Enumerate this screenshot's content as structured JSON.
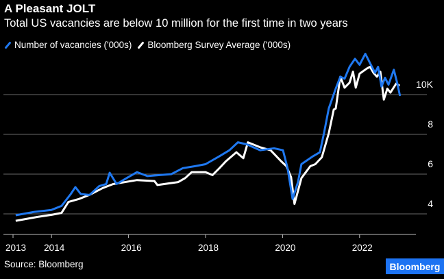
{
  "chart_data": {
    "type": "line",
    "title": "A Pleasant JOLT",
    "subtitle": "Total US vacancies are below 10 million for the first time in two years",
    "xlabel": "",
    "ylabel": "",
    "xlim": [
      2012.75,
      2023.5
    ],
    "ylim": [
      3.5,
      12.5
    ],
    "x_ticks": [
      2013,
      2014,
      2016,
      2018,
      2020,
      2022
    ],
    "x_tick_labels": [
      "2013",
      "2014",
      "2016",
      "2018",
      "2020",
      "2022"
    ],
    "y_ticks": [
      4,
      6,
      8,
      10
    ],
    "y_tick_labels": [
      "4",
      "6",
      "8",
      "10K"
    ],
    "grid": true,
    "legend_position": "top-left",
    "series": [
      {
        "name": "Number of vacancies ('000s)",
        "color": "#1f78f0",
        "points": [
          [
            2013.07,
            3.93
          ],
          [
            2013.55,
            4.1
          ],
          [
            2014.0,
            4.2
          ],
          [
            2014.26,
            4.4
          ],
          [
            2014.5,
            5.0
          ],
          [
            2014.62,
            5.35
          ],
          [
            2014.76,
            5.0
          ],
          [
            2014.99,
            4.95
          ],
          [
            2015.24,
            5.4
          ],
          [
            2015.42,
            5.5
          ],
          [
            2015.51,
            6.07
          ],
          [
            2015.69,
            5.5
          ],
          [
            2015.95,
            5.8
          ],
          [
            2016.22,
            6.1
          ],
          [
            2016.49,
            5.9
          ],
          [
            2016.81,
            5.95
          ],
          [
            2017.11,
            6.0
          ],
          [
            2017.41,
            6.3
          ],
          [
            2017.73,
            6.4
          ],
          [
            2018.0,
            6.5
          ],
          [
            2018.36,
            6.9
          ],
          [
            2018.62,
            7.2
          ],
          [
            2018.84,
            7.6
          ],
          [
            2019.07,
            7.5
          ],
          [
            2019.42,
            7.2
          ],
          [
            2019.78,
            7.3
          ],
          [
            2020.01,
            7.2
          ],
          [
            2020.13,
            6.3
          ],
          [
            2020.26,
            4.75
          ],
          [
            2020.4,
            5.6
          ],
          [
            2020.49,
            6.5
          ],
          [
            2020.79,
            6.9
          ],
          [
            2020.97,
            7.1
          ],
          [
            2021.08,
            8.1
          ],
          [
            2021.2,
            9.3
          ],
          [
            2021.38,
            10.3
          ],
          [
            2021.5,
            10.9
          ],
          [
            2021.61,
            10.8
          ],
          [
            2021.74,
            11.4
          ],
          [
            2021.88,
            11.8
          ],
          [
            2022.0,
            11.5
          ],
          [
            2022.15,
            12.05
          ],
          [
            2022.32,
            11.4
          ],
          [
            2022.4,
            11.1
          ],
          [
            2022.48,
            11.4
          ],
          [
            2022.57,
            10.4
          ],
          [
            2022.66,
            10.85
          ],
          [
            2022.75,
            10.5
          ],
          [
            2022.89,
            11.25
          ],
          [
            2022.98,
            10.55
          ],
          [
            2023.05,
            9.93
          ]
        ]
      },
      {
        "name": "Bloomberg Survey Average ('000s)",
        "color": "#ffffff",
        "points": [
          [
            2013.07,
            3.65
          ],
          [
            2013.64,
            3.85
          ],
          [
            2014.0,
            3.95
          ],
          [
            2014.26,
            4.05
          ],
          [
            2014.44,
            4.6
          ],
          [
            2014.71,
            4.75
          ],
          [
            2014.98,
            4.95
          ],
          [
            2015.33,
            5.3
          ],
          [
            2015.6,
            5.5
          ],
          [
            2016.22,
            5.7
          ],
          [
            2016.67,
            5.65
          ],
          [
            2016.75,
            5.45
          ],
          [
            2017.29,
            5.6
          ],
          [
            2017.47,
            5.8
          ],
          [
            2017.64,
            6.1
          ],
          [
            2018.0,
            6.1
          ],
          [
            2018.18,
            5.95
          ],
          [
            2018.36,
            6.3
          ],
          [
            2018.53,
            6.65
          ],
          [
            2018.8,
            7.1
          ],
          [
            2018.98,
            6.8
          ],
          [
            2019.1,
            7.6
          ],
          [
            2019.42,
            7.35
          ],
          [
            2019.69,
            7.2
          ],
          [
            2019.96,
            6.65
          ],
          [
            2020.1,
            6.4
          ],
          [
            2020.22,
            5.85
          ],
          [
            2020.31,
            4.5
          ],
          [
            2020.49,
            5.8
          ],
          [
            2020.72,
            6.4
          ],
          [
            2020.85,
            6.5
          ],
          [
            2021.02,
            6.85
          ],
          [
            2021.2,
            8.05
          ],
          [
            2021.33,
            9.25
          ],
          [
            2021.38,
            9.3
          ],
          [
            2021.5,
            10.9
          ],
          [
            2021.61,
            10.35
          ],
          [
            2021.74,
            10.6
          ],
          [
            2021.83,
            11.15
          ],
          [
            2021.9,
            10.35
          ],
          [
            2022.0,
            11.05
          ],
          [
            2022.18,
            11.3
          ],
          [
            2022.27,
            11.4
          ],
          [
            2022.36,
            11.1
          ],
          [
            2022.45,
            10.9
          ],
          [
            2022.54,
            11.15
          ],
          [
            2022.63,
            9.75
          ],
          [
            2022.72,
            10.3
          ],
          [
            2022.8,
            10.1
          ],
          [
            2022.95,
            10.55
          ],
          [
            2023.04,
            10.45
          ]
        ]
      }
    ]
  },
  "source": "Source: Bloomberg",
  "logo": "Bloomberg"
}
